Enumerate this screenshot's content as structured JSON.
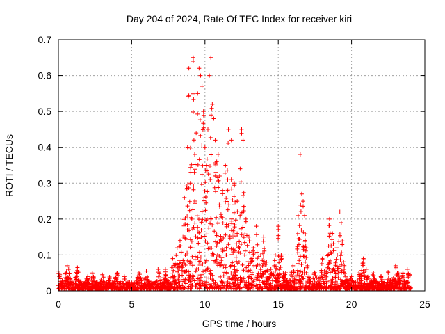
{
  "chart_data": {
    "type": "scatter",
    "title": "Day 204 of 2024, Rate Of TEC Index for receiver kiri",
    "xlabel": "GPS time / hours",
    "ylabel": "ROTI / TECUs",
    "xlim": [
      0,
      25
    ],
    "ylim": [
      0,
      0.7
    ],
    "xticks": [
      "0",
      "5",
      "10",
      "15",
      "20",
      "25"
    ],
    "yticks": [
      "0",
      "0.1",
      "0.2",
      "0.3",
      "0.4",
      "0.5",
      "0.6",
      "0.7"
    ],
    "grid": true,
    "marker": "+",
    "color": "#ff0000",
    "series": [
      {
        "points": [
          [
            0.0,
            0.015
          ],
          [
            0.0,
            0.055
          ],
          [
            0.1,
            0.02
          ],
          [
            0.1,
            0.045
          ],
          [
            0.2,
            0.018
          ],
          [
            0.3,
            0.01
          ],
          [
            0.6,
            0.07
          ],
          [
            0.7,
            0.06
          ],
          [
            1.3,
            0.065
          ],
          [
            1.4,
            0.05
          ],
          [
            2.0,
            0.04
          ],
          [
            2.3,
            0.05
          ],
          [
            3.0,
            0.045
          ],
          [
            3.5,
            0.035
          ],
          [
            4.0,
            0.05
          ],
          [
            4.5,
            0.04
          ],
          [
            5.5,
            0.05
          ],
          [
            6.0,
            0.055
          ],
          [
            6.8,
            0.06
          ],
          [
            7.3,
            0.06
          ],
          [
            7.8,
            0.09
          ],
          [
            8.1,
            0.12
          ],
          [
            8.3,
            0.14
          ],
          [
            8.5,
            0.15
          ],
          [
            8.6,
            0.26
          ],
          [
            8.8,
            0.17
          ],
          [
            8.9,
            0.62
          ],
          [
            9.0,
            0.3
          ],
          [
            9.1,
            0.2
          ],
          [
            9.2,
            0.65
          ],
          [
            9.2,
            0.64
          ],
          [
            9.3,
            0.38
          ],
          [
            9.4,
            0.44
          ],
          [
            9.5,
            0.55
          ],
          [
            9.6,
            0.62
          ],
          [
            9.7,
            0.6
          ],
          [
            9.8,
            0.57
          ],
          [
            9.9,
            0.5
          ],
          [
            10.0,
            0.4
          ],
          [
            10.1,
            0.35
          ],
          [
            10.2,
            0.45
          ],
          [
            10.3,
            0.6
          ],
          [
            10.4,
            0.65
          ],
          [
            10.5,
            0.52
          ],
          [
            10.6,
            0.48
          ],
          [
            10.7,
            0.42
          ],
          [
            10.8,
            0.36
          ],
          [
            10.9,
            0.38
          ],
          [
            11.0,
            0.32
          ],
          [
            11.2,
            0.28
          ],
          [
            11.4,
            0.35
          ],
          [
            11.6,
            0.45
          ],
          [
            11.8,
            0.42
          ],
          [
            12.0,
            0.3
          ],
          [
            12.2,
            0.25
          ],
          [
            12.4,
            0.34
          ],
          [
            12.5,
            0.45
          ],
          [
            12.6,
            0.42
          ],
          [
            12.8,
            0.2
          ],
          [
            13.0,
            0.15
          ],
          [
            13.3,
            0.12
          ],
          [
            13.5,
            0.18
          ],
          [
            13.8,
            0.1
          ],
          [
            14.0,
            0.15
          ],
          [
            14.2,
            0.08
          ],
          [
            14.5,
            0.06
          ],
          [
            14.8,
            0.1
          ],
          [
            15.0,
            0.18
          ],
          [
            15.2,
            0.1
          ],
          [
            15.5,
            0.05
          ],
          [
            16.0,
            0.07
          ],
          [
            16.3,
            0.05
          ],
          [
            16.5,
            0.38
          ],
          [
            16.6,
            0.27
          ],
          [
            16.7,
            0.25
          ],
          [
            16.8,
            0.21
          ],
          [
            16.9,
            0.12
          ],
          [
            17.0,
            0.07
          ],
          [
            17.5,
            0.05
          ],
          [
            18.0,
            0.09
          ],
          [
            18.5,
            0.2
          ],
          [
            18.7,
            0.16
          ],
          [
            19.0,
            0.12
          ],
          [
            19.2,
            0.22
          ],
          [
            19.3,
            0.19
          ],
          [
            19.5,
            0.06
          ],
          [
            20.0,
            0.04
          ],
          [
            20.5,
            0.05
          ],
          [
            20.8,
            0.09
          ],
          [
            21.0,
            0.06
          ],
          [
            21.5,
            0.05
          ],
          [
            22.0,
            0.04
          ],
          [
            22.5,
            0.05
          ],
          [
            23.0,
            0.07
          ],
          [
            23.2,
            0.05
          ],
          [
            23.5,
            0.05
          ],
          [
            23.8,
            0.06
          ],
          [
            24.0,
            0.045
          ]
        ]
      }
    ]
  }
}
